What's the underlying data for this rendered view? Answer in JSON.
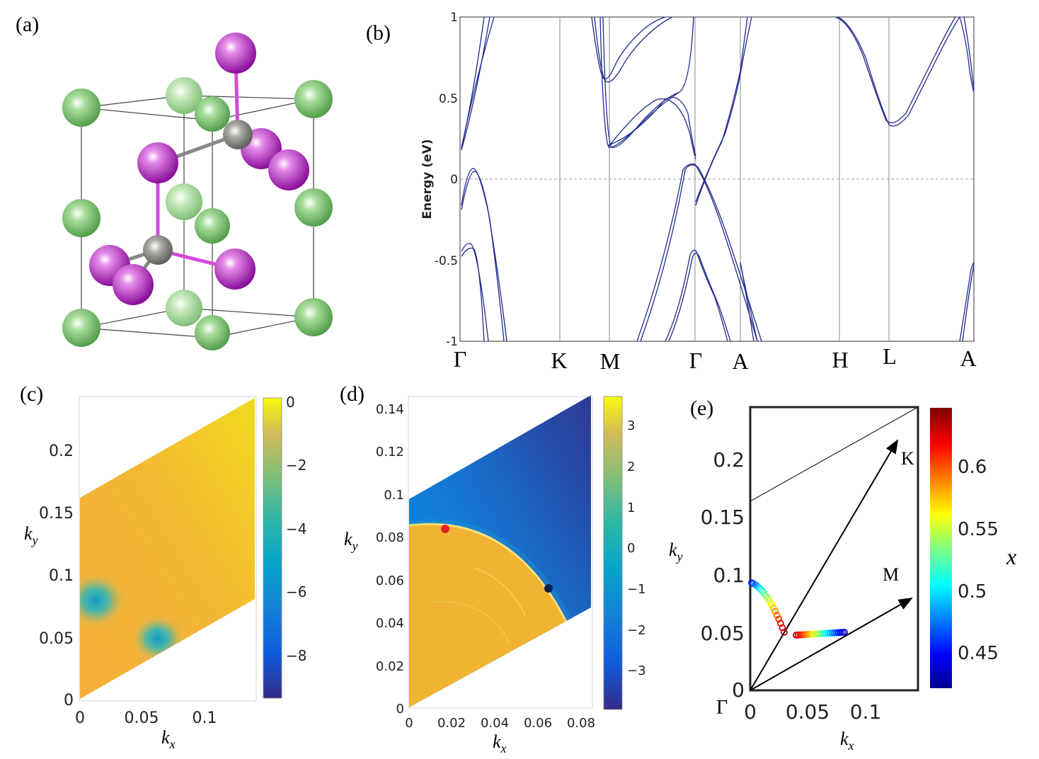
{
  "panels": {
    "a": {
      "label": "(a)"
    },
    "b": {
      "label": "(b)"
    },
    "c": {
      "label": "(c)"
    },
    "d": {
      "label": "(d)"
    },
    "e": {
      "label": "(e)"
    }
  },
  "band": {
    "ylabel": "Energy (eV)",
    "yticks": [
      "1",
      "0.5",
      "0",
      "-0.5",
      "-1"
    ],
    "kpoints": [
      "Γ",
      "K",
      "M",
      "Γ",
      "A",
      "H",
      "L",
      "A"
    ],
    "line_color": "#1f2a8c"
  },
  "panel_c": {
    "xticks": [
      "0",
      "0.05",
      "0.1"
    ],
    "yticks": [
      "0",
      "0.05",
      "0.1",
      "0.15",
      "0.2"
    ],
    "xlabel": "k",
    "xlabel_sub": "x",
    "ylabel": "k",
    "ylabel_sub": "y",
    "colorbar_ticks": [
      "0",
      "−2",
      "−4",
      "−6",
      "−8"
    ]
  },
  "panel_d": {
    "xticks": [
      "0",
      "0.02",
      "0.04",
      "0.06",
      "0.08"
    ],
    "yticks": [
      "0",
      "0.02",
      "0.04",
      "0.06",
      "0.08",
      "0.1",
      "0.12",
      "0.14"
    ],
    "xlabel": "k",
    "xlabel_sub": "x",
    "ylabel": "k",
    "ylabel_sub": "y",
    "colorbar_ticks": [
      "3",
      "2",
      "1",
      "0",
      "−1",
      "−2",
      "−3"
    ],
    "marker_colors": [
      "#e8232a",
      "#0c1f4a"
    ]
  },
  "panel_e": {
    "xticks": [
      "0",
      "0.05",
      "0.1"
    ],
    "yticks": [
      "0",
      "0.05",
      "0.1",
      "0.15",
      "0.2"
    ],
    "xlabel": "k",
    "xlabel_sub": "x",
    "ylabel": "k",
    "ylabel_sub": "y",
    "gamma_label": "Γ",
    "k_label": "K",
    "m_label": "M",
    "colorbar_ticks": [
      "0.6",
      "0.55",
      "0.5",
      "0.45"
    ],
    "colorbar_title": "x"
  }
}
